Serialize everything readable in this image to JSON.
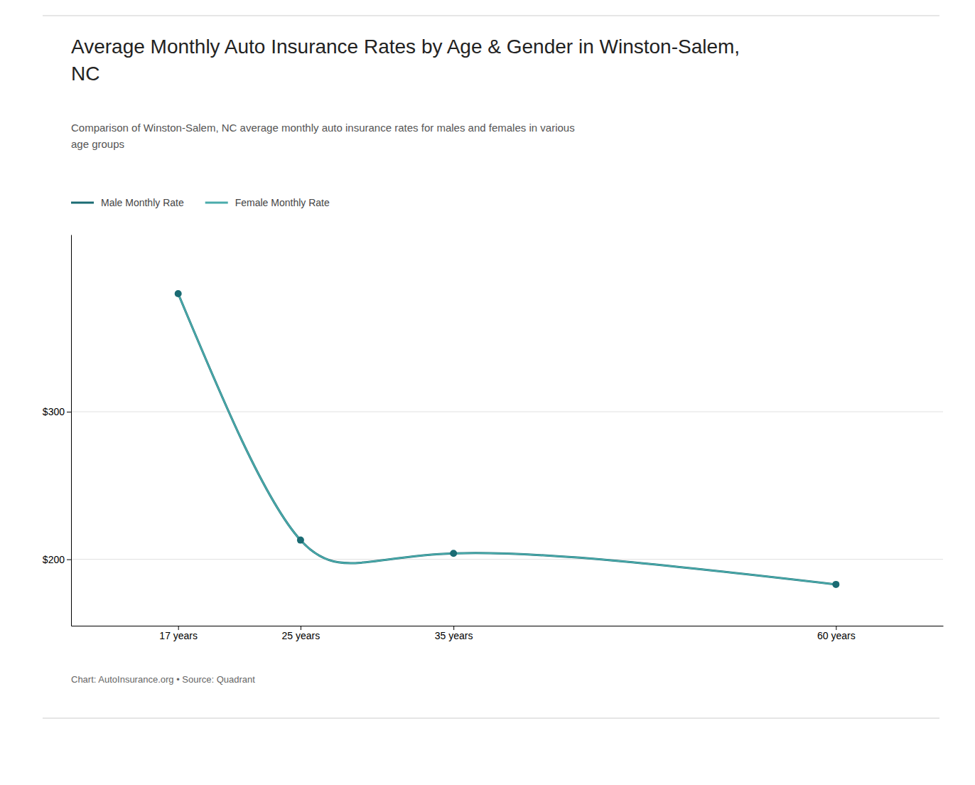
{
  "chart_data": {
    "type": "line",
    "title": "Average Monthly Auto Insurance Rates by Age & Gender in Winston-Salem,\nNC",
    "subtitle": "Comparison of Winston-Salem, NC average monthly auto insurance rates for males and females in various\nage groups",
    "x": [
      17,
      25,
      35,
      60
    ],
    "series": [
      {
        "name": "Male Monthly Rate",
        "color": "#1a6b73",
        "values": [
          380,
          213,
          204,
          183
        ],
        "marker": "circle",
        "line_style": "solid"
      },
      {
        "name": "Female Monthly Rate",
        "color": "#4aabab",
        "values": [
          380,
          213,
          204,
          183
        ],
        "line_style": "solid"
      }
    ],
    "xlim": [
      10,
      67
    ],
    "xticks": [
      {
        "value": 17,
        "label": "17 years"
      },
      {
        "value": 25,
        "label": "25 years"
      },
      {
        "value": 35,
        "label": "35 years"
      },
      {
        "value": 60,
        "label": "60 years"
      }
    ],
    "ylim": [
      155,
      420
    ],
    "yticks": [
      {
        "value": 200,
        "label": "$200"
      },
      {
        "value": 300,
        "label": "$300"
      }
    ],
    "grid": true,
    "legend": "upper left",
    "annotations": [
      "Chart: AutoInsurance.org • Source: Quadrant"
    ]
  }
}
